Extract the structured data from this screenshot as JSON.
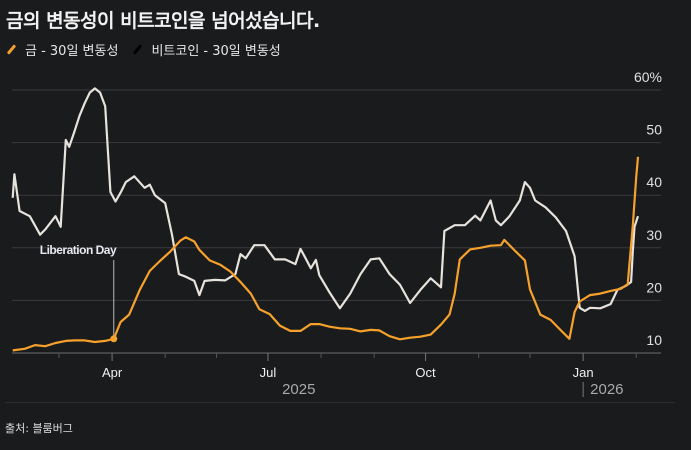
{
  "title": "금의 변동성이 비트코인을 넘어섰습니다.",
  "source": "출처: 블룸버그",
  "colors": {
    "gold": "#f7a12d",
    "bitcoin": "#e6e2dc",
    "bitcoin_legend": "#000000",
    "grid": "#3a3b3e",
    "background": "#1a1b1d"
  },
  "chart_data": {
    "type": "line",
    "title": "금의 변동성이 비트코인을 넘어섰습니다.",
    "x_unit": "days since 2025-02-01",
    "xlim": [
      0,
      370
    ],
    "ylim": [
      10,
      60
    ],
    "y_ticks": [
      {
        "value": 60,
        "label": "60%"
      },
      {
        "value": 50,
        "label": "50"
      },
      {
        "value": 40,
        "label": "40"
      },
      {
        "value": 30,
        "label": "30"
      },
      {
        "value": 20,
        "label": "20"
      },
      {
        "value": 10,
        "label": "10"
      }
    ],
    "x_ticks": [
      {
        "day": 59,
        "label": "Apr"
      },
      {
        "day": 150,
        "label": "Jul"
      },
      {
        "day": 242,
        "label": "Oct"
      },
      {
        "day": 334,
        "label": "Jan"
      }
    ],
    "minor_ticks": [
      28,
      90,
      120,
      181,
      212,
      273,
      303,
      365
    ],
    "years": [
      {
        "day": 168,
        "label": "2025"
      },
      {
        "day": 334,
        "label": "2026"
      }
    ],
    "legend": "top-left",
    "series": [
      {
        "name": "금 - 30일 변동성",
        "key": "gold",
        "x": [
          1,
          8,
          14,
          20,
          26,
          32,
          37,
          43,
          49,
          55,
          60,
          64,
          69,
          75,
          81,
          87,
          93,
          99,
          102,
          107,
          110,
          116,
          122,
          128,
          134,
          140,
          145,
          151,
          157,
          163,
          169,
          175,
          180,
          186,
          192,
          198,
          204,
          210,
          215,
          221,
          227,
          233,
          239,
          245,
          251,
          256,
          259,
          262,
          268,
          274,
          280,
          286,
          288,
          294,
          300,
          303,
          309,
          315,
          321,
          326,
          329,
          332,
          338,
          344,
          350,
          356,
          360,
          363,
          365,
          366
        ],
        "y": [
          10.5,
          10.8,
          11.5,
          11.3,
          11.9,
          12.3,
          12.4,
          12.4,
          12.1,
          12.3,
          12.7,
          15.9,
          17.3,
          21.9,
          25.6,
          27.5,
          29.3,
          31.4,
          32,
          31.2,
          29.6,
          27.6,
          26.8,
          25.5,
          23.5,
          21.3,
          18.3,
          17.4,
          15.2,
          14.2,
          14.2,
          15.5,
          15.5,
          15,
          14.7,
          14.6,
          14.1,
          14.4,
          14.3,
          13.2,
          12.6,
          12.9,
          13.1,
          13.5,
          15.4,
          17.3,
          21.3,
          27.8,
          29.7,
          30,
          30.4,
          30.5,
          31.5,
          29.5,
          27.6,
          22.1,
          17.3,
          16.3,
          14.3,
          12.7,
          17.8,
          19.8,
          21,
          21.3,
          21.8,
          22.2,
          23.1,
          34.2,
          43.4,
          47.3
        ]
      },
      {
        "name": "비트코인 - 30일 변동성",
        "key": "bitcoin",
        "x": [
          1,
          2,
          5,
          11,
          17,
          20,
          26,
          29,
          32,
          34,
          37,
          40,
          43,
          46,
          49,
          52,
          55,
          58,
          61,
          64,
          67,
          72,
          78,
          81,
          84,
          90,
          94,
          98,
          102,
          107,
          110,
          113,
          119,
          125,
          131,
          134,
          137,
          142,
          148,
          154,
          160,
          166,
          169,
          172,
          175,
          178,
          180,
          186,
          192,
          198,
          204,
          210,
          215,
          221,
          227,
          233,
          239,
          245,
          251,
          253,
          259,
          265,
          271,
          274,
          280,
          283,
          286,
          291,
          297,
          300,
          303,
          306,
          312,
          318,
          324,
          329,
          332,
          335,
          338,
          344,
          350,
          354,
          359,
          362,
          363,
          364,
          366
        ],
        "y": [
          39.5,
          44,
          37,
          36,
          32.5,
          33.5,
          36,
          34,
          50.5,
          49.2,
          52.1,
          55.1,
          57.5,
          59.5,
          60.3,
          59.5,
          56.9,
          40.6,
          38.8,
          40.5,
          42.5,
          43.6,
          41.4,
          42,
          40,
          38.5,
          32.5,
          25,
          24.5,
          23.7,
          21,
          23.7,
          23.9,
          23.8,
          25,
          28.8,
          28,
          30.5,
          30.5,
          27.8,
          27.8,
          26.9,
          29.8,
          28,
          26.1,
          27.7,
          24.8,
          21.5,
          18.5,
          21.3,
          25,
          27.8,
          28,
          25,
          23,
          19.5,
          22,
          24.2,
          22.5,
          33.2,
          34.3,
          34.3,
          36.1,
          35.2,
          39,
          35.2,
          34.3,
          36,
          39,
          42.5,
          41.4,
          39,
          37.7,
          35.8,
          33.2,
          28.4,
          18.6,
          18,
          18.6,
          18.5,
          19.3,
          22,
          22.8,
          23.5,
          29.3,
          34,
          36
        ]
      }
    ],
    "annotations": [
      {
        "day": 60,
        "value": 12.7,
        "label": "Liberation Day"
      }
    ]
  }
}
